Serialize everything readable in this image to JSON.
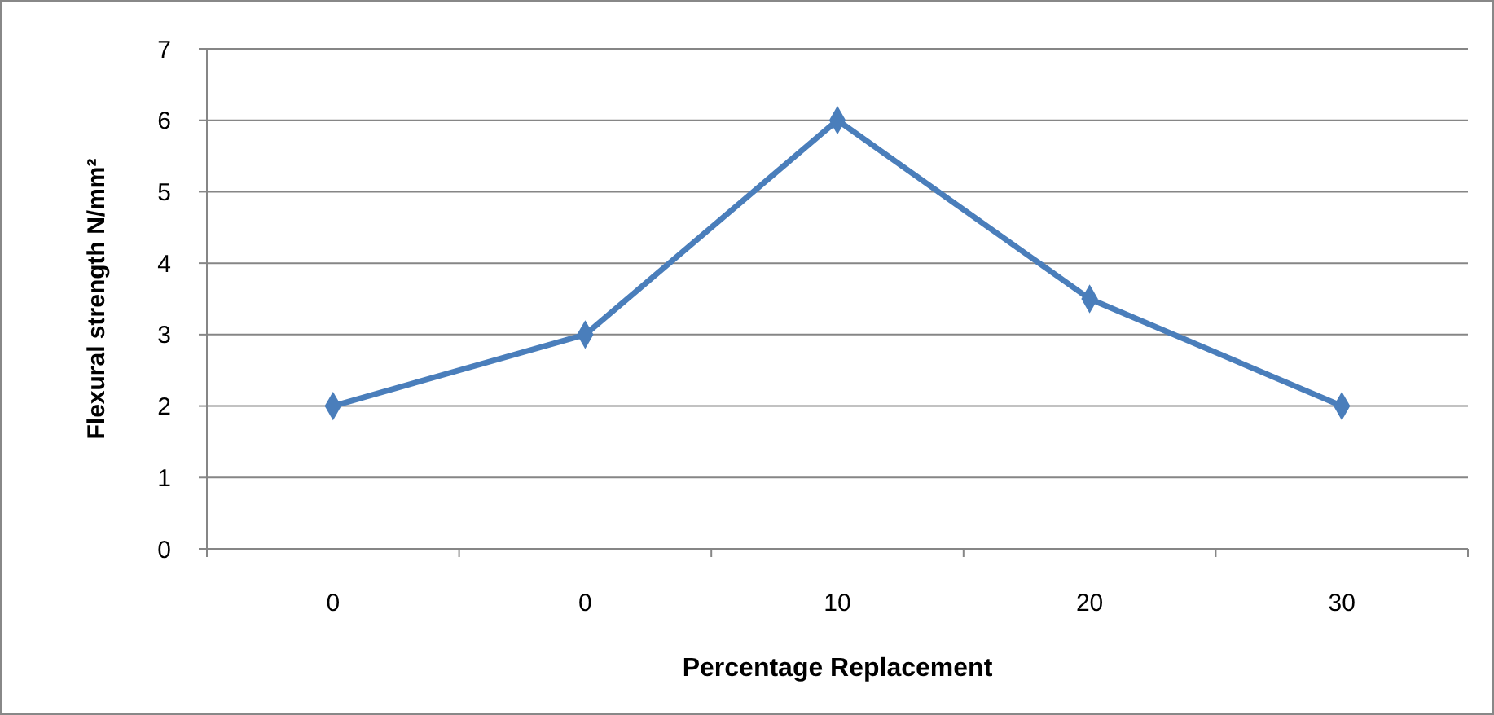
{
  "chart_data": {
    "type": "line",
    "xlabel": "Percentage Replacement",
    "ylabel": "Flexural strength N/mm²",
    "categories": [
      "0",
      "0",
      "10",
      "20",
      "30"
    ],
    "series": [
      {
        "color": "#4a7ebb",
        "values": [
          2,
          3,
          6,
          3.5,
          2
        ]
      }
    ],
    "ylim": [
      0,
      7
    ],
    "yticks": [
      0,
      1,
      2,
      3,
      4,
      5,
      6,
      7
    ],
    "grid": "y",
    "marker": "diamond"
  }
}
